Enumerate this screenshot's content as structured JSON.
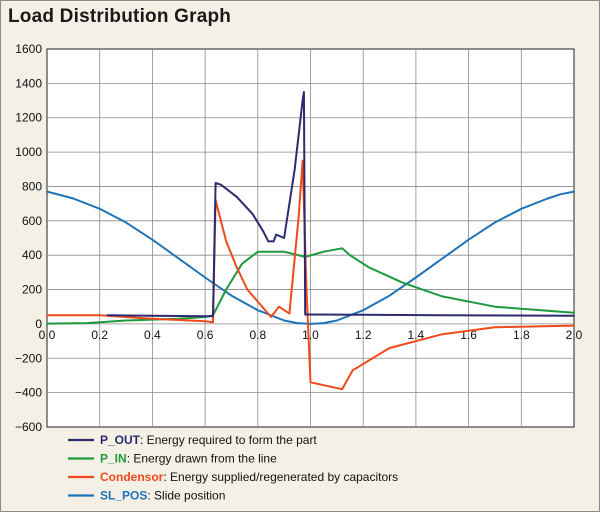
{
  "title": "Load Distribution Graph",
  "chart_data": {
    "type": "line",
    "title": "Load Distribution Graph",
    "xlabel": "",
    "ylabel": "",
    "xlim": [
      0.0,
      2.0
    ],
    "ylim": [
      -600,
      1600
    ],
    "x_ticks": [
      "0.0",
      "0.2",
      "0.4",
      "0.6",
      "0.8",
      "1.0",
      "1.2",
      "1.4",
      "1.6",
      "1.8",
      "2.0"
    ],
    "y_ticks": [
      "1600",
      "1400",
      "1200",
      "1000",
      "800",
      "600",
      "400",
      "200",
      "0",
      "−200",
      "−400",
      "−600"
    ],
    "grid": true,
    "legend_position": "bottom",
    "series": [
      {
        "name": "P_OUT",
        "description": "Energy required to form the part",
        "color": "#2b2b6e",
        "x": [
          0.23,
          0.4,
          0.6,
          0.63,
          0.64,
          0.66,
          0.72,
          0.78,
          0.82,
          0.84,
          0.86,
          0.87,
          0.9,
          0.94,
          0.97,
          0.975,
          0.98,
          1.0,
          1.2,
          1.5,
          2.0
        ],
        "y": [
          50,
          47,
          45,
          45,
          820,
          810,
          740,
          640,
          540,
          480,
          480,
          520,
          500,
          900,
          1300,
          1350,
          55,
          55,
          53,
          50,
          48
        ]
      },
      {
        "name": "P_IN",
        "description": "Energy drawn from the line",
        "color": "#1e9a3e",
        "x": [
          0.0,
          0.15,
          0.3,
          0.5,
          0.6,
          0.63,
          0.68,
          0.74,
          0.8,
          0.9,
          0.98,
          1.05,
          1.12,
          1.15,
          1.22,
          1.35,
          1.5,
          1.7,
          2.0
        ],
        "y": [
          2,
          5,
          20,
          30,
          40,
          50,
          200,
          350,
          420,
          420,
          390,
          420,
          440,
          400,
          330,
          240,
          160,
          100,
          65
        ]
      },
      {
        "name": "Condensor",
        "description": "Energy supplied/regenerated by capacitors",
        "color": "#f04a1c",
        "x": [
          0.0,
          0.2,
          0.4,
          0.6,
          0.63,
          0.64,
          0.68,
          0.72,
          0.76,
          0.8,
          0.85,
          0.88,
          0.92,
          0.955,
          0.97,
          0.985,
          1.0,
          1.12,
          1.16,
          1.3,
          1.5,
          1.7,
          2.0
        ],
        "y": [
          50,
          50,
          30,
          15,
          10,
          720,
          480,
          330,
          200,
          130,
          40,
          100,
          60,
          620,
          950,
          200,
          -340,
          -380,
          -270,
          -140,
          -60,
          -20,
          -10
        ]
      },
      {
        "name": "SL_POS",
        "description": "Slide position",
        "color": "#1f73b7",
        "x": [
          0.0,
          0.05,
          0.1,
          0.2,
          0.3,
          0.4,
          0.5,
          0.6,
          0.7,
          0.8,
          0.9,
          0.95,
          1.0,
          1.05,
          1.1,
          1.2,
          1.3,
          1.4,
          1.5,
          1.6,
          1.7,
          1.8,
          1.9,
          1.95,
          2.0
        ],
        "y": [
          770,
          750,
          730,
          670,
          590,
          490,
          380,
          270,
          165,
          80,
          20,
          5,
          0,
          5,
          20,
          80,
          165,
          270,
          380,
          490,
          590,
          670,
          730,
          755,
          770
        ]
      }
    ]
  }
}
